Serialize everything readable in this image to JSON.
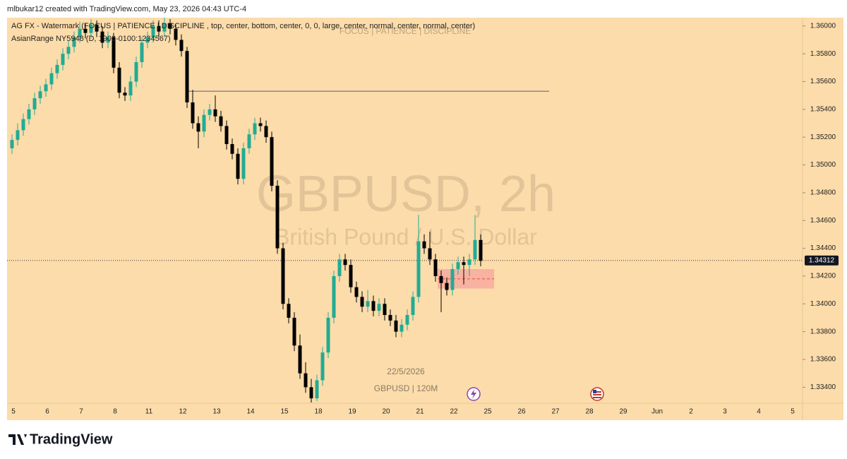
{
  "header": "mlbukar12 created with TradingView.com, May 23, 2026 04:43 UTC-4",
  "footer_brand": "TradingView",
  "chart_data": {
    "type": "candlestick",
    "symbol_watermark": "GBPUSD, 2h",
    "description_watermark": "British Pound / U.S. Dollar",
    "indicator_watermark": "FOCUS | PATIENCE | DISCIPLINE",
    "legend_lines": [
      "AG FX - Watermark (FOCUS | PATIENCE | DISCIPLINE , top, center, bottom, center, 0, 0, large, center, normal, center, normal, center)",
      "AsianRange NY5948 (D, 1900-0100:1234567)"
    ],
    "annotations": [
      "22/5/2026",
      "GBPUSD | 120M"
    ],
    "categories": [
      "5",
      "6",
      "7",
      "8",
      "11",
      "12",
      "13",
      "14",
      "15",
      "18",
      "19",
      "20",
      "21",
      "22",
      "25",
      "26",
      "27",
      "28",
      "29",
      "Jun",
      "2",
      "3",
      "4",
      "5"
    ],
    "ohlc": [
      [
        1.3512,
        1.3522,
        1.3508,
        1.3518
      ],
      [
        1.3518,
        1.353,
        1.3514,
        1.3525
      ],
      [
        1.3525,
        1.3537,
        1.3521,
        1.3533
      ],
      [
        1.3533,
        1.3544,
        1.3529,
        1.354
      ],
      [
        1.354,
        1.3552,
        1.3536,
        1.3548
      ],
      [
        1.3548,
        1.3557,
        1.3544,
        1.3553
      ],
      [
        1.3553,
        1.3562,
        1.3549,
        1.3558
      ],
      [
        1.3558,
        1.357,
        1.3554,
        1.3566
      ],
      [
        1.3566,
        1.3576,
        1.3562,
        1.3572
      ],
      [
        1.3572,
        1.3584,
        1.3568,
        1.358
      ],
      [
        1.358,
        1.3589,
        1.3576,
        1.3585
      ],
      [
        1.3585,
        1.3596,
        1.3581,
        1.3592
      ],
      [
        1.3592,
        1.3603,
        1.3588,
        1.3598
      ],
      [
        1.3598,
        1.3602,
        1.3591,
        1.3595
      ],
      [
        1.3595,
        1.3605,
        1.3591,
        1.3601
      ],
      [
        1.3601,
        1.3604,
        1.3592,
        1.3596
      ],
      [
        1.3596,
        1.36,
        1.3584,
        1.3588
      ],
      [
        1.3588,
        1.3596,
        1.3584,
        1.3592
      ],
      [
        1.3592,
        1.3595,
        1.3566,
        1.357
      ],
      [
        1.357,
        1.3574,
        1.3548,
        1.3552
      ],
      [
        1.3552,
        1.3556,
        1.3546,
        1.355
      ],
      [
        1.355,
        1.3564,
        1.3546,
        1.356
      ],
      [
        1.356,
        1.3578,
        1.3556,
        1.3574
      ],
      [
        1.3574,
        1.3592,
        1.357,
        1.3588
      ],
      [
        1.3588,
        1.3596,
        1.3584,
        1.3592
      ],
      [
        1.3592,
        1.3604,
        1.3588,
        1.36
      ],
      [
        1.36,
        1.3604,
        1.3592,
        1.3596
      ],
      [
        1.3596,
        1.3606,
        1.3592,
        1.3602
      ],
      [
        1.3602,
        1.3605,
        1.3594,
        1.3598
      ],
      [
        1.3598,
        1.3601,
        1.3586,
        1.359
      ],
      [
        1.359,
        1.3594,
        1.3578,
        1.3582
      ],
      [
        1.3582,
        1.3585,
        1.3541,
        1.3545
      ],
      [
        1.3545,
        1.3554,
        1.3526,
        1.353
      ],
      [
        1.353,
        1.3535,
        1.3512,
        1.3524
      ],
      [
        1.3524,
        1.354,
        1.352,
        1.3536
      ],
      [
        1.3536,
        1.3544,
        1.3532,
        1.354
      ],
      [
        1.354,
        1.355,
        1.3531,
        1.3535
      ],
      [
        1.3535,
        1.3539,
        1.3524,
        1.3528
      ],
      [
        1.3528,
        1.3532,
        1.3511,
        1.3515
      ],
      [
        1.3515,
        1.3519,
        1.3504,
        1.3508
      ],
      [
        1.3508,
        1.3512,
        1.3486,
        1.349
      ],
      [
        1.349,
        1.3516,
        1.3486,
        1.3512
      ],
      [
        1.3512,
        1.3526,
        1.3508,
        1.3522
      ],
      [
        1.3522,
        1.3534,
        1.3518,
        1.353
      ],
      [
        1.353,
        1.3534,
        1.3524,
        1.3528
      ],
      [
        1.3528,
        1.3532,
        1.3516,
        1.352
      ],
      [
        1.352,
        1.3524,
        1.3481,
        1.3485
      ],
      [
        1.3485,
        1.3489,
        1.3436,
        1.344
      ],
      [
        1.344,
        1.3444,
        1.3396,
        1.34
      ],
      [
        1.34,
        1.3404,
        1.3386,
        1.339
      ],
      [
        1.339,
        1.3394,
        1.3366,
        1.337
      ],
      [
        1.337,
        1.3378,
        1.3346,
        1.335
      ],
      [
        1.335,
        1.3358,
        1.3336,
        1.334
      ],
      [
        1.334,
        1.3346,
        1.3329,
        1.3332
      ],
      [
        1.3332,
        1.3349,
        1.333,
        1.3345
      ],
      [
        1.3345,
        1.3369,
        1.3341,
        1.3365
      ],
      [
        1.3365,
        1.3394,
        1.3361,
        1.339
      ],
      [
        1.339,
        1.3424,
        1.3386,
        1.342
      ],
      [
        1.342,
        1.3436,
        1.3416,
        1.3432
      ],
      [
        1.3432,
        1.3436,
        1.3424,
        1.3428
      ],
      [
        1.3428,
        1.3432,
        1.3408,
        1.3412
      ],
      [
        1.3412,
        1.3416,
        1.3401,
        1.3405
      ],
      [
        1.3405,
        1.3409,
        1.3394,
        1.3398
      ],
      [
        1.3398,
        1.341,
        1.3394,
        1.3402
      ],
      [
        1.3402,
        1.3406,
        1.3391,
        1.3395
      ],
      [
        1.3395,
        1.3404,
        1.3391,
        1.34
      ],
      [
        1.34,
        1.3404,
        1.3388,
        1.3392
      ],
      [
        1.3392,
        1.3396,
        1.3384,
        1.3388
      ],
      [
        1.3388,
        1.3392,
        1.3376,
        1.338
      ],
      [
        1.338,
        1.3389,
        1.3376,
        1.3385
      ],
      [
        1.3385,
        1.3396,
        1.3381,
        1.3392
      ],
      [
        1.3392,
        1.3409,
        1.3388,
        1.3405
      ],
      [
        1.3405,
        1.3464,
        1.3401,
        1.3445
      ],
      [
        1.3445,
        1.345,
        1.3436,
        1.344
      ],
      [
        1.344,
        1.3452,
        1.3428,
        1.3432
      ],
      [
        1.3432,
        1.3436,
        1.3416,
        1.342
      ],
      [
        1.342,
        1.3424,
        1.3394,
        1.3415
      ],
      [
        1.3415,
        1.3419,
        1.3406,
        1.341
      ],
      [
        1.341,
        1.3429,
        1.3406,
        1.3425
      ],
      [
        1.3425,
        1.3434,
        1.3421,
        1.343
      ],
      [
        1.343,
        1.3434,
        1.3414,
        1.3428
      ],
      [
        1.3428,
        1.3436,
        1.342,
        1.3432
      ],
      [
        1.3432,
        1.3464,
        1.3428,
        1.3446
      ],
      [
        1.3446,
        1.345,
        1.3427,
        1.3431
      ]
    ],
    "colors": {
      "up": "#22ab94",
      "down": "#000000"
    },
    "ylim": [
      1.3329,
      1.3606
    ],
    "yticks": [
      {
        "value": 1.36,
        "label": "1.36000"
      },
      {
        "value": 1.358,
        "label": "1.35800"
      },
      {
        "value": 1.356,
        "label": "1.35600"
      },
      {
        "value": 1.354,
        "label": "1.35400"
      },
      {
        "value": 1.352,
        "label": "1.35200"
      },
      {
        "value": 1.35,
        "label": "1.35000"
      },
      {
        "value": 1.348,
        "label": "1.34800"
      },
      {
        "value": 1.346,
        "label": "1.34600"
      },
      {
        "value": 1.344,
        "label": "1.34400"
      },
      {
        "value": 1.342,
        "label": "1.34200"
      },
      {
        "value": 1.34,
        "label": "1.34000"
      },
      {
        "value": 1.338,
        "label": "1.33800"
      },
      {
        "value": 1.336,
        "label": "1.33600"
      },
      {
        "value": 1.334,
        "label": "1.33400"
      }
    ],
    "hline": 1.3553,
    "zone": {
      "top": 1.3425,
      "bottom": 1.3411,
      "color": "#f7aaa0"
    },
    "last_price": {
      "value": 1.34312,
      "label": "1.34312"
    }
  }
}
